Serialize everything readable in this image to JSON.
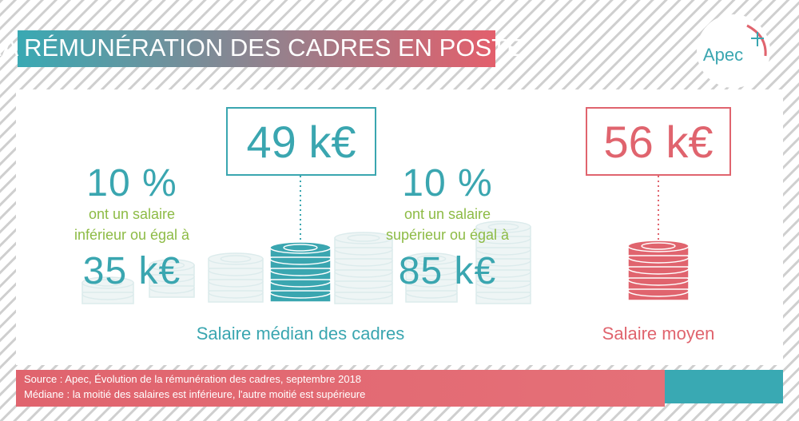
{
  "header": {
    "title": "LA RÉMUNÉRATION DES CADRES EN POSTE",
    "logo": "Apec"
  },
  "lower": {
    "percent": "10 %",
    "lines": [
      "ont un salaire",
      "inférieur ou égal à"
    ],
    "amount": "35 k€"
  },
  "median": {
    "amount": "49 k€",
    "label": "Salaire médian des cadres"
  },
  "upper": {
    "percent": "10 %",
    "lines": [
      "ont un salaire",
      "supérieur ou égal à"
    ],
    "amount": "85 k€"
  },
  "mean": {
    "amount": "56 k€",
    "label": "Salaire moyen"
  },
  "footer": {
    "source": "Source :  Apec, Évolution de la rémunération des cadres, septembre 2018",
    "note": "Médiane : la moitié des salaires est inférieure, l'autre moitié est supérieure"
  }
}
